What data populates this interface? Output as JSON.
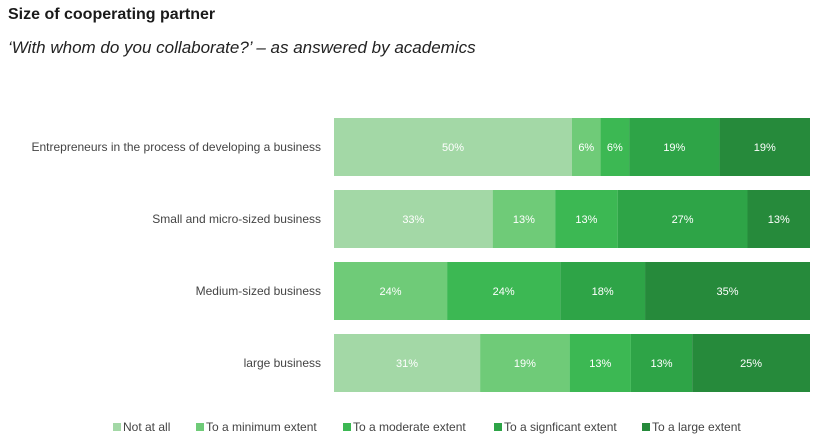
{
  "header": {
    "title": "Size of cooperating partner",
    "subtitle": "‘With whom do you collaborate?’ – as answered by academics"
  },
  "chart_data": {
    "type": "bar",
    "orientation": "horizontal",
    "stacked": "percent",
    "title": "Size of cooperating partner",
    "subtitle": "‘With whom do you collaborate?’ – as answered by academics",
    "categories": [
      "Entrepreneurs in the process of developing a business",
      "Small and micro-sized business",
      "Medium-sized business",
      "large business"
    ],
    "series": [
      {
        "name": "Not at all",
        "color": "#a3d8a6",
        "values": [
          50,
          33,
          0,
          31
        ],
        "labels": [
          "50%",
          "33%",
          "%",
          "31%"
        ]
      },
      {
        "name": "To a minimum extent",
        "color": "#6fcb78",
        "values": [
          6,
          13,
          24,
          19
        ],
        "labels": [
          "6%",
          "13%",
          "24%",
          "19%"
        ]
      },
      {
        "name": "To a moderate extent",
        "color": "#3cb853",
        "values": [
          6,
          13,
          24,
          13
        ],
        "labels": [
          "6%",
          "13%",
          "24%",
          "13%"
        ]
      },
      {
        "name": "To a signficant extent",
        "color": "#2ea447",
        "values": [
          19,
          27,
          18,
          13
        ],
        "labels": [
          "19%",
          "27%",
          "18%",
          "13%"
        ]
      },
      {
        "name": "To a large extent",
        "color": "#268a3b",
        "values": [
          19,
          13,
          35,
          25
        ],
        "labels": [
          "19%",
          "13%",
          "35%",
          "25%"
        ]
      }
    ],
    "xlim": [
      0,
      100
    ],
    "legend": "bottom",
    "grid": false
  }
}
